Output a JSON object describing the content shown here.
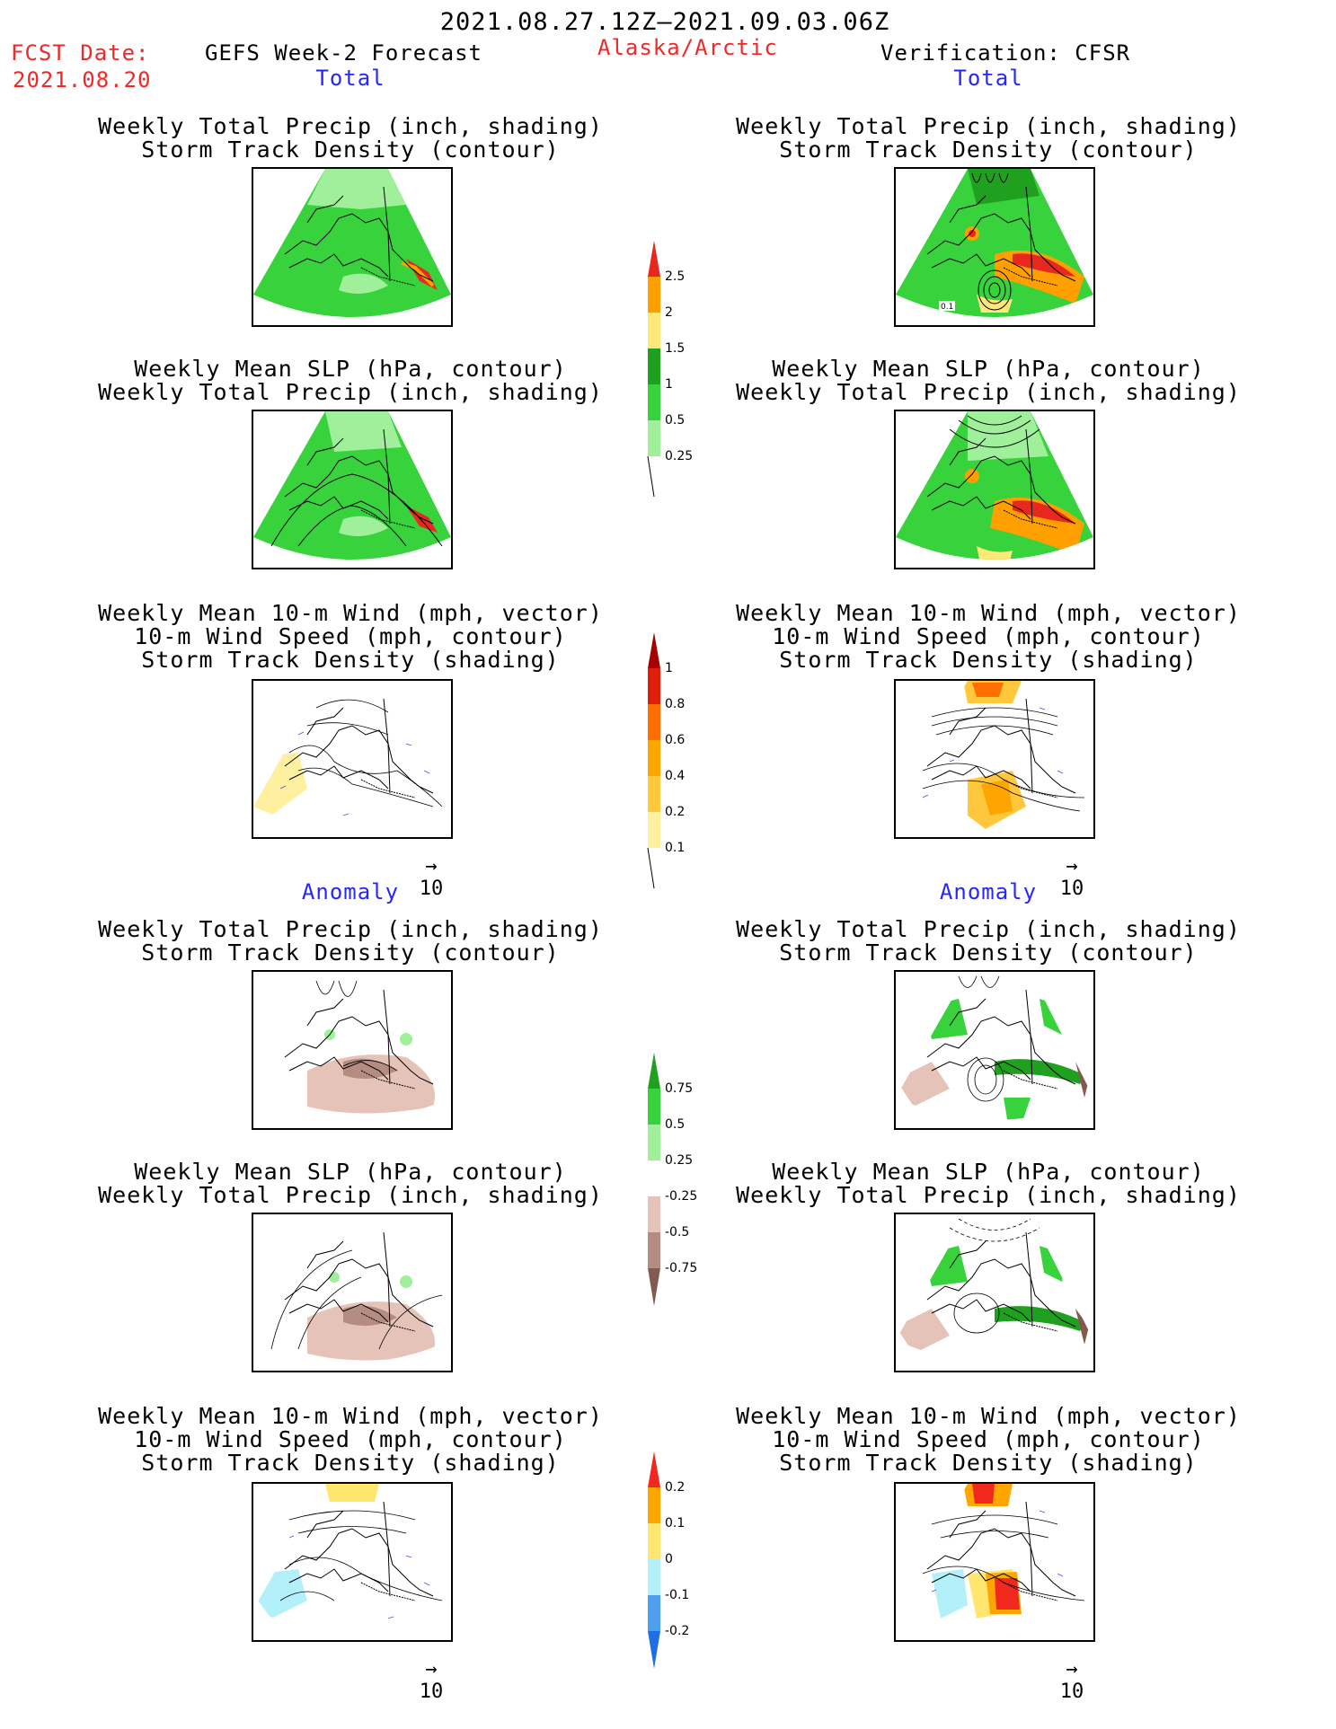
{
  "header": {
    "period": "2021.08.27.12Z–2021.09.03.06Z",
    "fcst_label": "FCST Date:",
    "fcst_date": "2021.08.20",
    "model": "GEFS Week-2 Forecast",
    "region": "Alaska/Arctic",
    "verification": "Verification: CFSR"
  },
  "sections": {
    "total_left": "Total",
    "total_right": "Total",
    "anomaly_left": "Anomaly",
    "anomaly_right": "Anomaly"
  },
  "titles": {
    "precip_storm": [
      "Weekly Total Precip (inch, shading)",
      "Storm Track Density (contour)"
    ],
    "slp_precip": [
      "Weekly Mean SLP (hPa, contour)",
      "Weekly Total Precip (inch, shading)"
    ],
    "wind": [
      "Weekly Mean 10-m Wind (mph, vector)",
      "10-m Wind Speed (mph, contour)",
      "Storm Track Density (shading)"
    ]
  },
  "vector_ref": "10",
  "map_labels": {
    "contour_value": "0.1"
  },
  "colorbars": {
    "precip_total": {
      "labels": [
        "2.5",
        "2",
        "1.5",
        "1",
        "0.5",
        "0.25"
      ],
      "colors": [
        "#e8281e",
        "#ffa000",
        "#ffe778",
        "#1fa11f",
        "#37d23c",
        "#a0f09b"
      ]
    },
    "storm_total": {
      "labels": [
        "1",
        "0.8",
        "0.6",
        "0.4",
        "0.2",
        "0.1"
      ],
      "colors": [
        "#a50000",
        "#e11e0a",
        "#ff6e00",
        "#ffa500",
        "#ffc83c",
        "#fff0a0"
      ]
    },
    "precip_anom": {
      "labels": [
        "0.75",
        "0.5",
        "0.25",
        "-0.25",
        "-0.5",
        "-0.75"
      ],
      "colors": [
        "#1fa11f",
        "#37d23c",
        "#a0f09b",
        "#ffffff",
        "#e6c3b9",
        "#b48c82",
        "#825a50"
      ]
    },
    "storm_anom": {
      "labels": [
        "0.2",
        "0.1",
        "0",
        "-0.1",
        "-0.2"
      ],
      "colors": [
        "#f0281e",
        "#ffa500",
        "#ffe66e",
        "#b4f0fa",
        "#50a0f0",
        "#1e6ee6"
      ]
    }
  }
}
